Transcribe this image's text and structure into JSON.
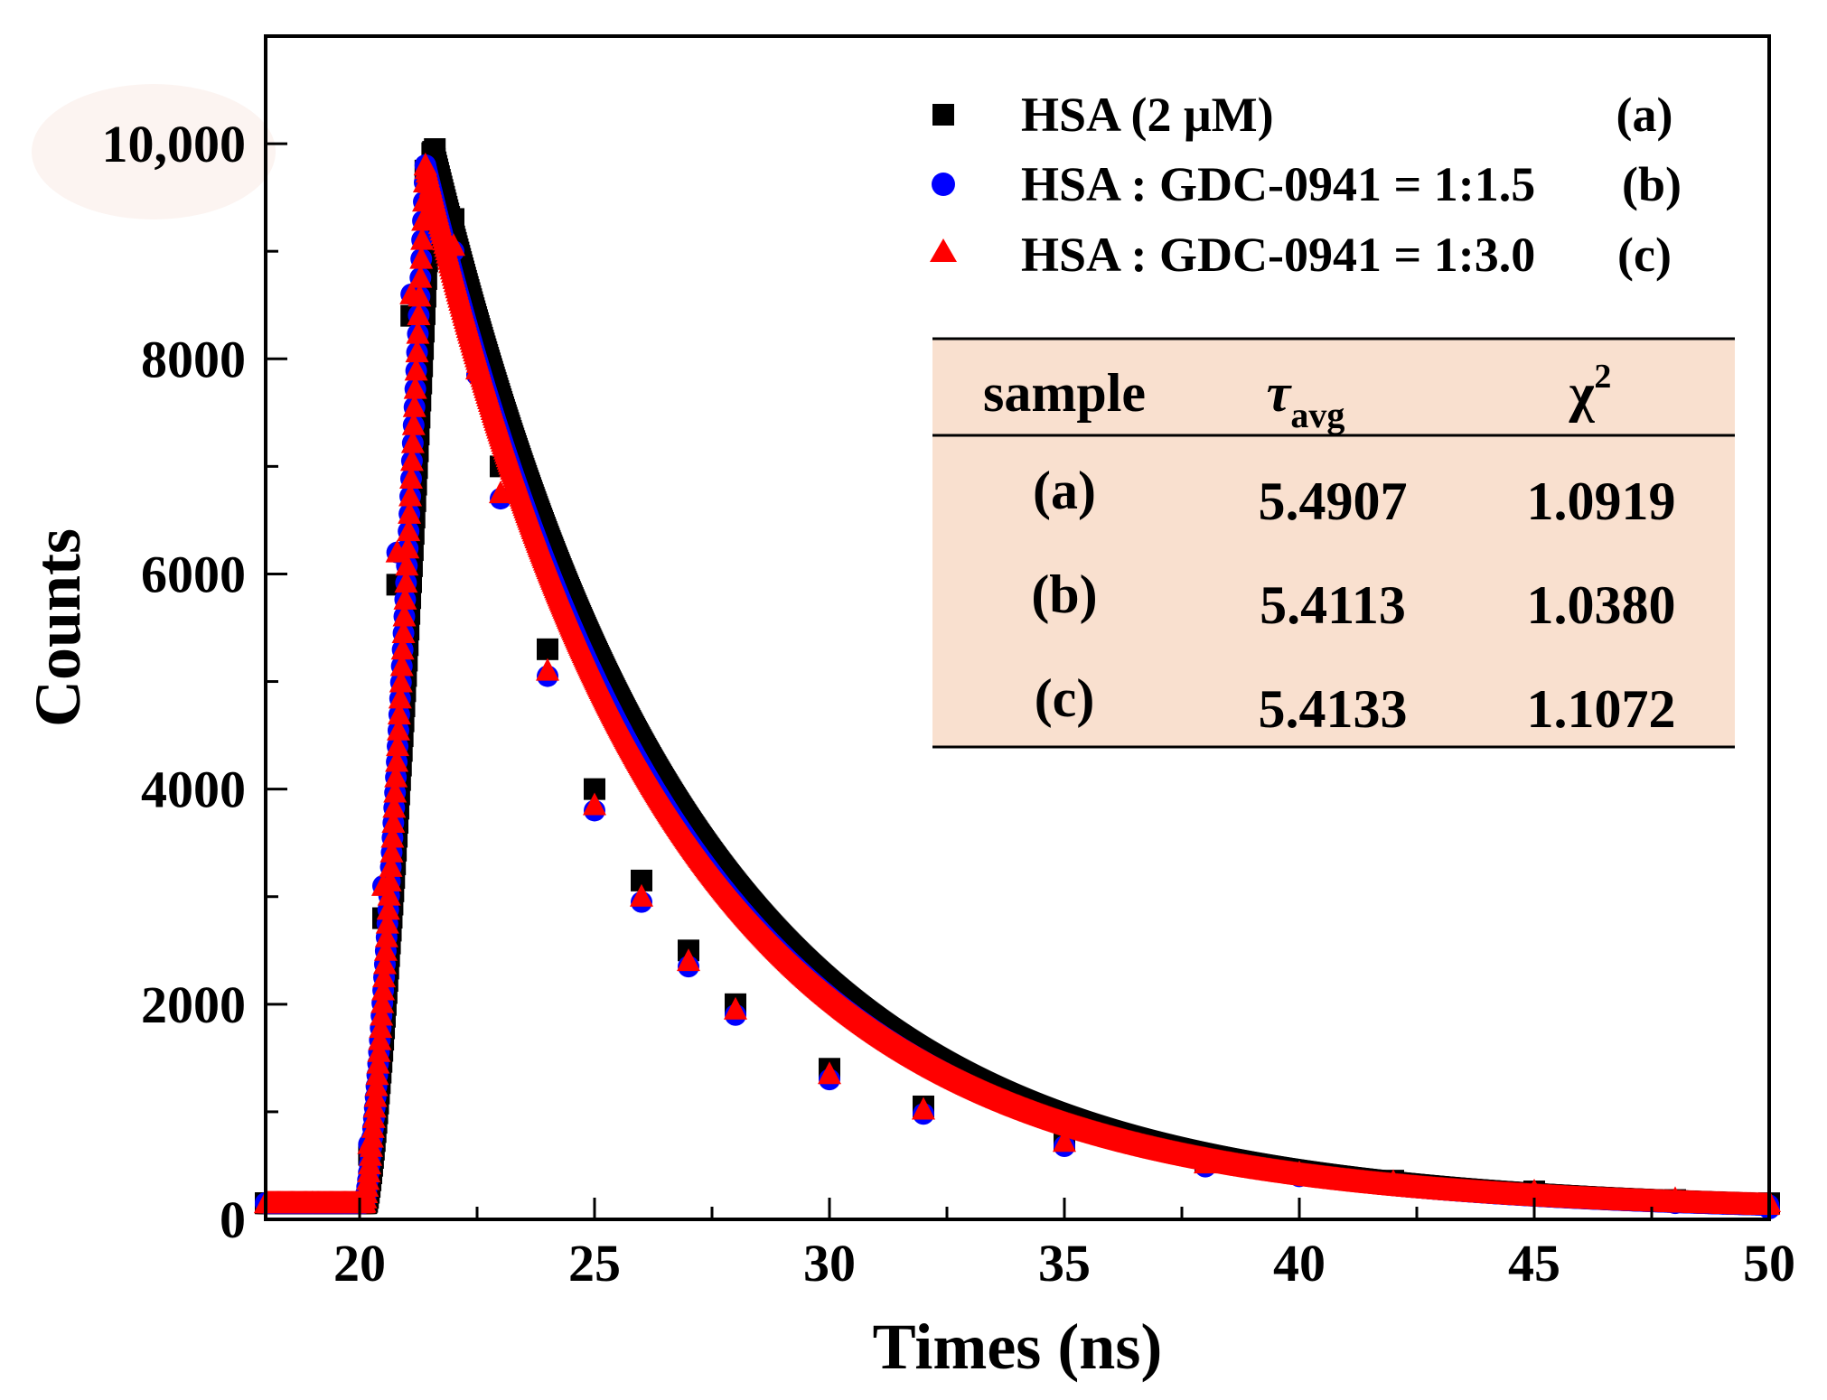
{
  "chart_data": {
    "type": "scatter",
    "title": "",
    "xlabel": "Times (ns)",
    "ylabel": "Counts",
    "xlim": [
      18,
      50
    ],
    "ylim": [
      0,
      11000
    ],
    "x_ticks": [
      20,
      25,
      30,
      35,
      40,
      45,
      50
    ],
    "x_tick_labels": [
      "20",
      "25",
      "30",
      "35",
      "40",
      "45",
      "50"
    ],
    "y_ticks": [
      0,
      2000,
      4000,
      6000,
      8000,
      10000
    ],
    "y_tick_labels": [
      "0",
      "2000",
      "4000",
      "6000",
      "8000",
      "10,000"
    ],
    "grid": false,
    "legend_position": "top-right",
    "series": [
      {
        "name": "HSA (2 μM)",
        "tag": "(a)",
        "marker": "square",
        "color": "#000000",
        "baseline": 150,
        "onset": 20.15,
        "peak_time": 21.55,
        "peak": 9950,
        "tau_avg": 5.4907,
        "x": [
          18,
          19,
          20,
          20.2,
          20.5,
          20.8,
          21.1,
          21.4,
          21.6,
          22,
          22.5,
          23,
          24,
          25,
          26,
          27,
          28,
          30,
          32,
          35,
          38,
          40,
          42,
          45,
          48,
          50
        ],
        "y": [
          150,
          150,
          150,
          600,
          2800,
          5900,
          8400,
          9750,
          9950,
          9300,
          8150,
          7000,
          5300,
          4000,
          3150,
          2500,
          2000,
          1400,
          1050,
          730,
          540,
          440,
          360,
          260,
          180,
          150
        ]
      },
      {
        "name": "HSA : GDC-0941 = 1:1.5",
        "tag": "(b)",
        "marker": "circle",
        "color": "#0000ff",
        "baseline": 150,
        "onset": 20.1,
        "peak_time": 21.4,
        "peak": 9800,
        "tau_avg": 5.4113,
        "x": [
          18,
          19,
          20,
          20.2,
          20.5,
          20.8,
          21.1,
          21.4,
          22,
          22.5,
          23,
          24,
          25,
          26,
          27,
          28,
          30,
          32,
          35,
          38,
          40,
          42,
          45,
          48,
          50
        ],
        "y": [
          150,
          150,
          150,
          700,
          3100,
          6200,
          8600,
          9800,
          9000,
          7850,
          6700,
          5050,
          3800,
          2950,
          2350,
          1900,
          1300,
          980,
          680,
          490,
          400,
          320,
          230,
          150,
          100
        ]
      },
      {
        "name": "HSA : GDC-0941 = 1:3.0",
        "tag": "(c)",
        "marker": "triangle",
        "color": "#ff0000",
        "baseline": 150,
        "onset": 20.1,
        "peak_time": 21.4,
        "peak": 9800,
        "tau_avg": 5.4133,
        "x": [
          18,
          19,
          20,
          20.2,
          20.5,
          20.8,
          21.1,
          21.4,
          22,
          22.5,
          23,
          24,
          25,
          26,
          27,
          28,
          30,
          32,
          35,
          38,
          40,
          42,
          45,
          48,
          50
        ],
        "y": [
          150,
          150,
          150,
          700,
          3100,
          6200,
          8600,
          9800,
          9050,
          7900,
          6750,
          5100,
          3850,
          3000,
          2400,
          1950,
          1350,
          1020,
          720,
          520,
          430,
          350,
          260,
          190,
          160
        ]
      }
    ],
    "table": {
      "headers": [
        "sample",
        "τ",
        "avg",
        "χ",
        "2"
      ],
      "rows": [
        [
          "(a)",
          "5.4907",
          "1.0919"
        ],
        [
          "(b)",
          "5.4113",
          "1.0380"
        ],
        [
          "(c)",
          "5.4133",
          "1.1072"
        ]
      ],
      "background": "#f9e0cf"
    }
  }
}
